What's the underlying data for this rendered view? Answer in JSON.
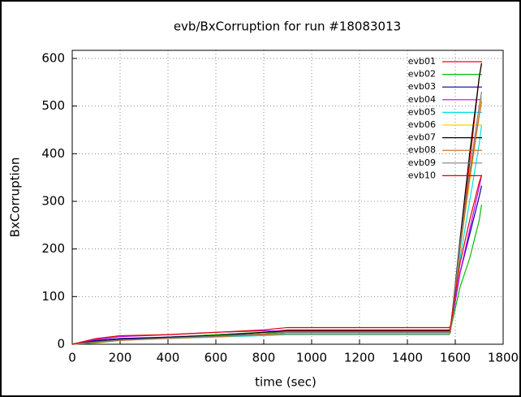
{
  "chart_data": {
    "type": "line",
    "title": "evb/BxCorruption for run #18083013",
    "x_label": "time (sec)",
    "y_label": "BxCorruption",
    "x": [
      0,
      100,
      200,
      400,
      600,
      800,
      900,
      1200,
      1575,
      1580,
      1620,
      1660,
      1700,
      1710
    ],
    "series": [
      {
        "name": "evb01",
        "color": "#ff0000",
        "values": [
          0,
          5,
          10,
          15,
          20,
          25,
          30,
          30,
          30,
          35,
          200,
          380,
          560,
          590
        ]
      },
      {
        "name": "evb02",
        "color": "#00c000",
        "values": [
          0,
          3,
          8,
          15,
          20,
          25,
          25,
          25,
          25,
          30,
          120,
          180,
          260,
          293
        ]
      },
      {
        "name": "evb03",
        "color": "#0000a0",
        "values": [
          0,
          8,
          12,
          15,
          18,
          22,
          25,
          25,
          25,
          30,
          150,
          230,
          310,
          333
        ]
      },
      {
        "name": "evb04",
        "color": "#c000ff",
        "values": [
          0,
          10,
          16,
          20,
          25,
          28,
          28,
          28,
          28,
          30,
          150,
          240,
          330,
          355
        ]
      },
      {
        "name": "evb05",
        "color": "#00e0e0",
        "values": [
          0,
          5,
          10,
          12,
          15,
          18,
          20,
          20,
          20,
          25,
          180,
          300,
          420,
          460
        ]
      },
      {
        "name": "evb06",
        "color": "#ffd000",
        "values": [
          0,
          4,
          8,
          12,
          16,
          20,
          22,
          22,
          22,
          25,
          200,
          340,
          480,
          520
        ]
      },
      {
        "name": "evb07",
        "color": "#000000",
        "values": [
          0,
          6,
          10,
          14,
          18,
          25,
          28,
          28,
          28,
          30,
          220,
          400,
          560,
          590
        ]
      },
      {
        "name": "evb08",
        "color": "#d06010",
        "values": [
          0,
          4,
          8,
          12,
          16,
          20,
          22,
          22,
          22,
          25,
          200,
          350,
          480,
          510
        ]
      },
      {
        "name": "evb09",
        "color": "#808080",
        "values": [
          0,
          5,
          9,
          13,
          17,
          22,
          25,
          25,
          25,
          30,
          210,
          360,
          500,
          530
        ]
      },
      {
        "name": "evb10",
        "color": "#e00000",
        "values": [
          0,
          12,
          18,
          20,
          25,
          30,
          35,
          35,
          35,
          38,
          170,
          260,
          340,
          355
        ]
      }
    ],
    "xlim": [
      0,
      1800
    ],
    "xticks": [
      0,
      200,
      400,
      600,
      800,
      1000,
      1200,
      1400,
      1600,
      1800
    ],
    "ylim": [
      0,
      617
    ],
    "yticks": [
      0,
      100,
      200,
      300,
      400,
      500,
      600
    ],
    "grid": true,
    "legend": "top-right"
  }
}
